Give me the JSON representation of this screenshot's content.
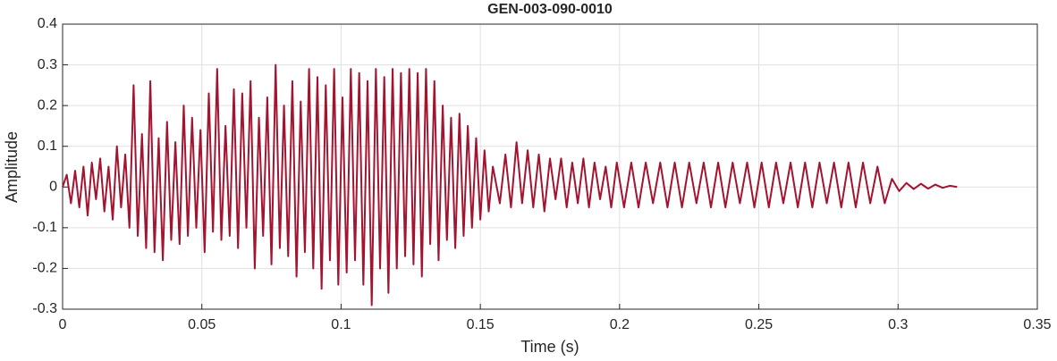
{
  "chart_data": {
    "type": "line",
    "title": "GEN-003-090-0010",
    "xlabel": "Time (s)",
    "ylabel": "Amplitude",
    "xlim": [
      0,
      0.35
    ],
    "ylim": [
      -0.3,
      0.4
    ],
    "xticks": [
      0,
      0.05,
      0.1,
      0.15,
      0.2,
      0.25,
      0.3,
      0.35
    ],
    "yticks": [
      -0.3,
      -0.2,
      -0.1,
      0,
      0.1,
      0.2,
      0.3,
      0.4
    ],
    "grid": true,
    "series": [
      {
        "color": "#a2142f",
        "x": [
          0,
          0.0015,
          0.003,
          0.0045,
          0.006,
          0.0075,
          0.009,
          0.0105,
          0.012,
          0.0135,
          0.015,
          0.0165,
          0.018,
          0.0195,
          0.021,
          0.0225,
          0.024,
          0.0255,
          0.027,
          0.0285,
          0.03,
          0.0315,
          0.033,
          0.0345,
          0.036,
          0.0375,
          0.039,
          0.0405,
          0.042,
          0.0435,
          0.045,
          0.0465,
          0.048,
          0.0495,
          0.051,
          0.0525,
          0.054,
          0.0555,
          0.057,
          0.0585,
          0.06,
          0.0615,
          0.063,
          0.0645,
          0.066,
          0.0675,
          0.069,
          0.0705,
          0.072,
          0.0735,
          0.075,
          0.0765,
          0.078,
          0.0795,
          0.081,
          0.0825,
          0.084,
          0.0855,
          0.087,
          0.0885,
          0.09,
          0.0915,
          0.093,
          0.0945,
          0.096,
          0.0975,
          0.099,
          0.1005,
          0.102,
          0.1035,
          0.105,
          0.1065,
          0.108,
          0.1095,
          0.111,
          0.1125,
          0.114,
          0.1155,
          0.117,
          0.1185,
          0.12,
          0.1215,
          0.123,
          0.1245,
          0.126,
          0.1275,
          0.129,
          0.1305,
          0.132,
          0.1335,
          0.135,
          0.1365,
          0.138,
          0.1395,
          0.141,
          0.1425,
          0.144,
          0.1455,
          0.147,
          0.1485,
          0.15,
          0.1515,
          0.153,
          0.1545,
          0.157,
          0.159,
          0.161,
          0.163,
          0.165,
          0.167,
          0.169,
          0.171,
          0.173,
          0.175,
          0.177,
          0.179,
          0.181,
          0.183,
          0.185,
          0.187,
          0.189,
          0.191,
          0.193,
          0.195,
          0.197,
          0.199,
          0.2016,
          0.2042,
          0.2068,
          0.2094,
          0.212,
          0.2146,
          0.2172,
          0.2198,
          0.2224,
          0.225,
          0.2276,
          0.2302,
          0.2328,
          0.2354,
          0.238,
          0.2406,
          0.2432,
          0.2458,
          0.2484,
          0.251,
          0.2536,
          0.2562,
          0.2588,
          0.2614,
          0.264,
          0.2666,
          0.2692,
          0.2718,
          0.2744,
          0.277,
          0.2796,
          0.2822,
          0.2848,
          0.2874,
          0.29,
          0.2926,
          0.2952,
          0.2978,
          0.3004,
          0.303,
          0.3056,
          0.3082,
          0.3108,
          0.3134,
          0.316,
          0.3186,
          0.3212
        ],
        "values": [
          0,
          0.03,
          -0.04,
          0.04,
          -0.05,
          0.05,
          -0.07,
          0.06,
          -0.03,
          0.07,
          -0.06,
          0.05,
          -0.08,
          0.1,
          -0.05,
          0.08,
          -0.1,
          0.25,
          -0.12,
          0.13,
          -0.15,
          0.26,
          -0.16,
          0.12,
          -0.18,
          0.16,
          -0.13,
          0.11,
          -0.14,
          0.2,
          -0.12,
          0.17,
          -0.1,
          0.14,
          -0.16,
          0.23,
          -0.11,
          0.29,
          -0.13,
          0.15,
          -0.12,
          0.24,
          -0.15,
          0.23,
          -0.1,
          0.26,
          -0.2,
          0.17,
          -0.12,
          0.22,
          -0.19,
          0.3,
          -0.15,
          0.2,
          -0.17,
          0.26,
          -0.22,
          0.21,
          -0.16,
          0.29,
          -0.2,
          0.27,
          -0.25,
          0.25,
          -0.18,
          0.29,
          -0.24,
          0.22,
          -0.21,
          0.29,
          -0.18,
          0.28,
          -0.24,
          0.26,
          -0.29,
          0.29,
          -0.2,
          0.27,
          -0.26,
          0.29,
          -0.2,
          0.28,
          -0.17,
          0.29,
          -0.19,
          0.28,
          -0.22,
          0.29,
          -0.14,
          0.26,
          -0.18,
          0.2,
          -0.13,
          0.17,
          -0.15,
          0.18,
          -0.12,
          0.15,
          -0.1,
          0.12,
          -0.08,
          0.09,
          -0.06,
          0.05,
          -0.04,
          0.08,
          -0.05,
          0.11,
          -0.04,
          0.09,
          -0.05,
          0.08,
          -0.06,
          0.07,
          -0.03,
          0.07,
          -0.05,
          0.06,
          -0.04,
          0.07,
          -0.05,
          0.06,
          -0.03,
          0.05,
          -0.05,
          0.06,
          -0.05,
          0.06,
          -0.05,
          0.06,
          -0.04,
          0.06,
          -0.05,
          0.06,
          -0.05,
          0.06,
          -0.04,
          0.06,
          -0.05,
          0.06,
          -0.05,
          0.06,
          -0.04,
          0.06,
          -0.05,
          0.06,
          -0.05,
          0.06,
          -0.04,
          0.06,
          -0.05,
          0.06,
          -0.05,
          0.06,
          -0.04,
          0.06,
          -0.05,
          0.06,
          -0.05,
          0.06,
          -0.04,
          0.05,
          -0.04,
          0.02,
          -0.01,
          0.01,
          -0.005,
          0.008,
          -0.004,
          0.006,
          -0.002,
          0.003,
          0
        ]
      }
    ]
  }
}
